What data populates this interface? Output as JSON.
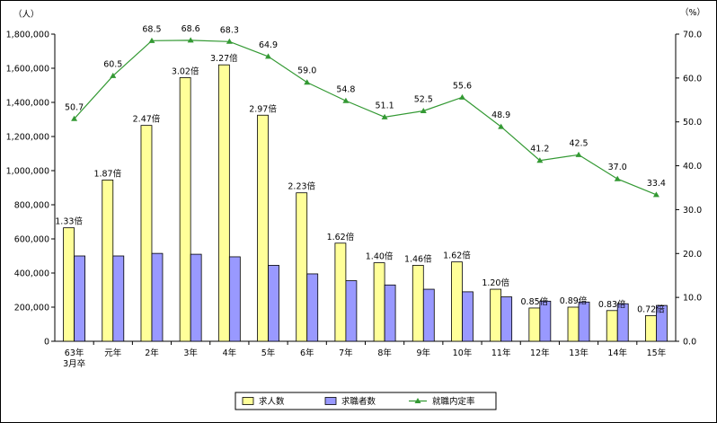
{
  "chart_data": {
    "type": "bar",
    "categories": [
      "63年\n3月卒",
      "元年",
      "2年",
      "3年",
      "4年",
      "5年",
      "6年",
      "7年",
      "8年",
      "9年",
      "10年",
      "11年",
      "12年",
      "13年",
      "14年",
      "15年"
    ],
    "series": [
      {
        "name": "求人数",
        "type": "bar",
        "axis": "left",
        "color": "#ffff99",
        "values": [
          665000,
          945000,
          1265000,
          1545000,
          1620000,
          1325000,
          870000,
          575000,
          460000,
          445000,
          465000,
          305000,
          195000,
          200000,
          180000,
          150000
        ]
      },
      {
        "name": "求職者数",
        "type": "bar",
        "axis": "left",
        "color": "#9999ff",
        "values": [
          500000,
          500000,
          515000,
          510000,
          495000,
          445000,
          395000,
          355000,
          330000,
          305000,
          290000,
          260000,
          235000,
          230000,
          220000,
          210000
        ]
      },
      {
        "name": "就職内定率",
        "type": "line",
        "axis": "right",
        "color": "#339933",
        "marker": "triangle",
        "values": [
          50.7,
          60.5,
          68.5,
          68.6,
          68.3,
          64.9,
          59.0,
          54.8,
          51.1,
          52.5,
          55.6,
          48.9,
          41.2,
          42.5,
          37.0,
          33.4
        ],
        "labels": [
          "50.7",
          "60.5",
          "68.5",
          "68.6",
          "68.3",
          "64.9",
          "59.0",
          "54.8",
          "51.1",
          "52.5",
          "55.6",
          "48.9",
          "41.2",
          "42.5",
          "37.0",
          "33.4"
        ]
      }
    ],
    "ratio_labels": [
      "1.33倍",
      "1.87倍",
      "2.47倍",
      "3.02倍",
      "3.27倍",
      "2.97倍",
      "2.23倍",
      "1.62倍",
      "1.40倍",
      "1.46倍",
      "1.62倍",
      "1.20倍",
      "0.85倍",
      "0.89倍",
      "0.83倍",
      "0.72倍"
    ],
    "y_left": {
      "unit": "（人）",
      "ylim": [
        0,
        1800000
      ],
      "ticks": [
        "0",
        "200,000",
        "400,000",
        "600,000",
        "800,000",
        "1,000,000",
        "1,200,000",
        "1,400,000",
        "1,600,000",
        "1,800,000"
      ]
    },
    "y_right": {
      "unit": "（%）",
      "ylim": [
        0,
        70
      ],
      "ticks": [
        "0.0",
        "10.0",
        "20.0",
        "30.0",
        "40.0",
        "50.0",
        "60.0",
        "70.0"
      ]
    },
    "grid": false,
    "legend": {
      "placement": "bottom-center",
      "items": [
        "求人数",
        "求職者数",
        "就職内定率"
      ]
    }
  }
}
